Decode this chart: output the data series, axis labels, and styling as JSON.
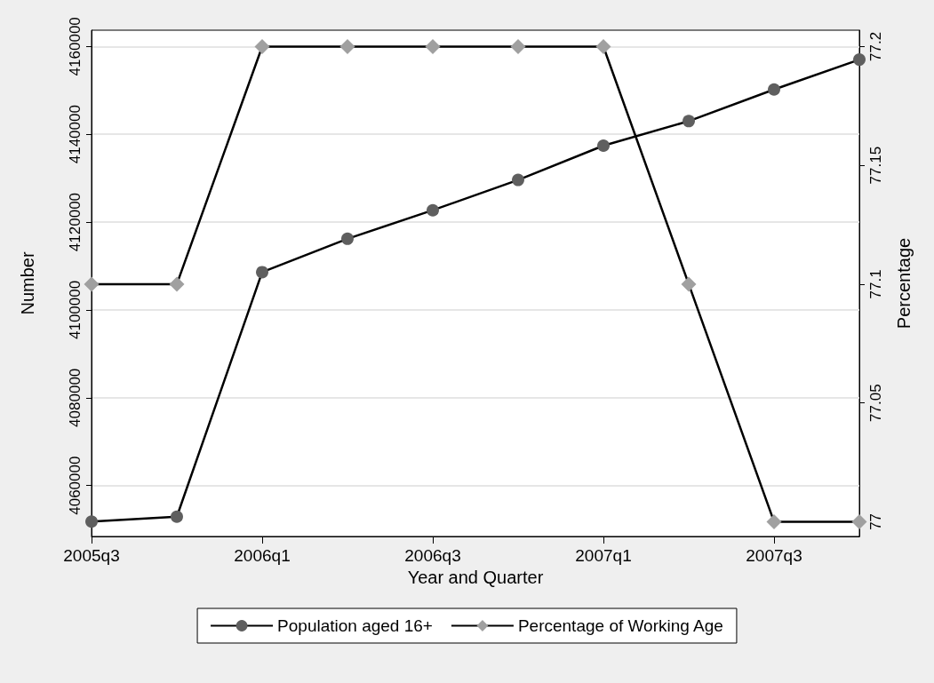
{
  "chart_data": {
    "type": "line",
    "xlabel": "Year and Quarter",
    "ylabel": "Number",
    "y2label": "Percentage",
    "categories": [
      "2005q3",
      null,
      "2006q1",
      null,
      "2006q3",
      null,
      "2007q1",
      null,
      "2007q3",
      null
    ],
    "series": [
      {
        "name": "Population aged 16+",
        "color": "#5f5f5f",
        "marker": "circle",
        "values": [
          4051800,
          4052900,
          4108600,
          4116200,
          4122700,
          4129600,
          4137400,
          4143000,
          4150200,
          4157000
        ]
      },
      {
        "name": "Percentage of Working Age",
        "color": "#a0a0a0",
        "marker": "diamond",
        "axis": "y2",
        "values": [
          77.1,
          77.1,
          77.2,
          77.2,
          77.2,
          77.2,
          77.2,
          77.1,
          77,
          77
        ]
      }
    ],
    "ylim": [
      4048400,
      4163700
    ],
    "yticks": [
      4060000,
      4080000,
      4100000,
      4120000,
      4140000,
      4160000
    ],
    "y2lim": [
      76.9938,
      77.2069
    ],
    "y2ticks": [
      77,
      77.05,
      77.1,
      77.15,
      77.2
    ],
    "grid": "y",
    "legend": "bottom",
    "line_style": "solid"
  }
}
